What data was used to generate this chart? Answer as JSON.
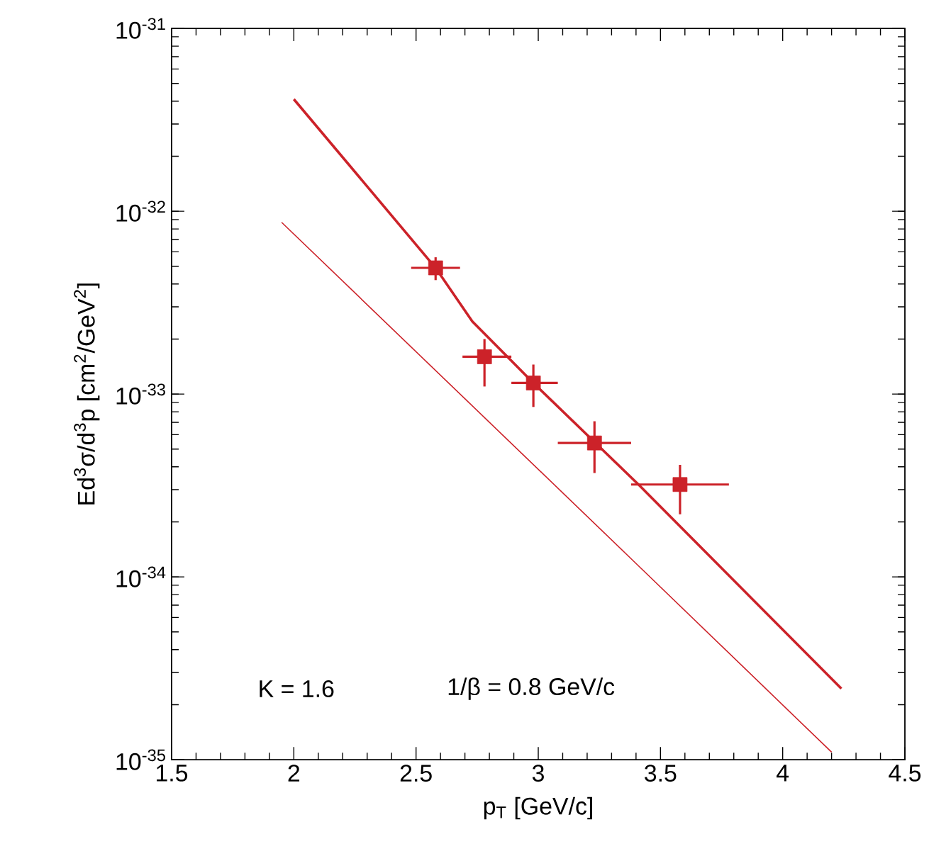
{
  "chart_data": {
    "type": "scatter",
    "xlabel": "p$_{T}$ [GeV/c]",
    "ylabel": "Ed$^{3}$σ/d$^{3}$p [cm$^{2}$/GeV$^{2}$]",
    "log": "y",
    "xlim": [
      1.5,
      4.5
    ],
    "ylim": [
      1e-35,
      1e-31
    ],
    "xticks": [
      1.5,
      2,
      2.5,
      3,
      3.5,
      4,
      4.5
    ],
    "yticks": [
      {
        "value": 1e-35,
        "label": "10$^{-35}$"
      },
      {
        "value": 1e-34,
        "label": "10$^{-34}$"
      },
      {
        "value": 1e-33,
        "label": "10$^{-33}$"
      },
      {
        "value": 1e-32,
        "label": "10$^{-32}$"
      },
      {
        "value": 1e-31,
        "label": "10$^{-31}$"
      }
    ],
    "annotations": [
      "K = 1.6",
      "1/β = 0.8 GeV/c"
    ],
    "series": [
      {
        "color": "#cc2229",
        "marker": "square",
        "x": [
          2.58,
          2.78,
          2.98,
          3.23,
          3.58
        ],
        "values": [
          4.9e-33,
          1.6e-33,
          1.15e-33,
          5.4e-34,
          3.2e-34
        ],
        "errors": [
          [
            4.2e-33,
            5.6e-33
          ],
          [
            1.1e-33,
            2e-33
          ],
          [
            8.5e-34,
            1.45e-33
          ],
          [
            3.7e-34,
            7.1e-34
          ],
          [
            2.2e-34,
            4.1e-34
          ]
        ],
        "xerrors": [
          [
            2.48,
            2.68
          ],
          [
            2.69,
            2.89
          ],
          [
            2.89,
            3.08
          ],
          [
            3.08,
            3.38
          ],
          [
            3.38,
            3.78
          ]
        ]
      },
      {
        "type": "line",
        "color": "#cc2229",
        "marker": "none",
        "line_style": "solid",
        "x": [
          2.0,
          2.58,
          2.73,
          2.98,
          3.41,
          4.24
        ],
        "values": [
          4.1e-32,
          4.9e-33,
          2.5e-33,
          1.15e-33,
          3.2e-34,
          2.45e-35
        ]
      },
      {
        "type": "line",
        "color": "#cc2229",
        "marker": "none",
        "line_style": "solid",
        "x": [
          1.95,
          3.41,
          4.2
        ],
        "values": [
          8.7e-33,
          1.15e-34,
          1.1e-35
        ]
      }
    ]
  }
}
